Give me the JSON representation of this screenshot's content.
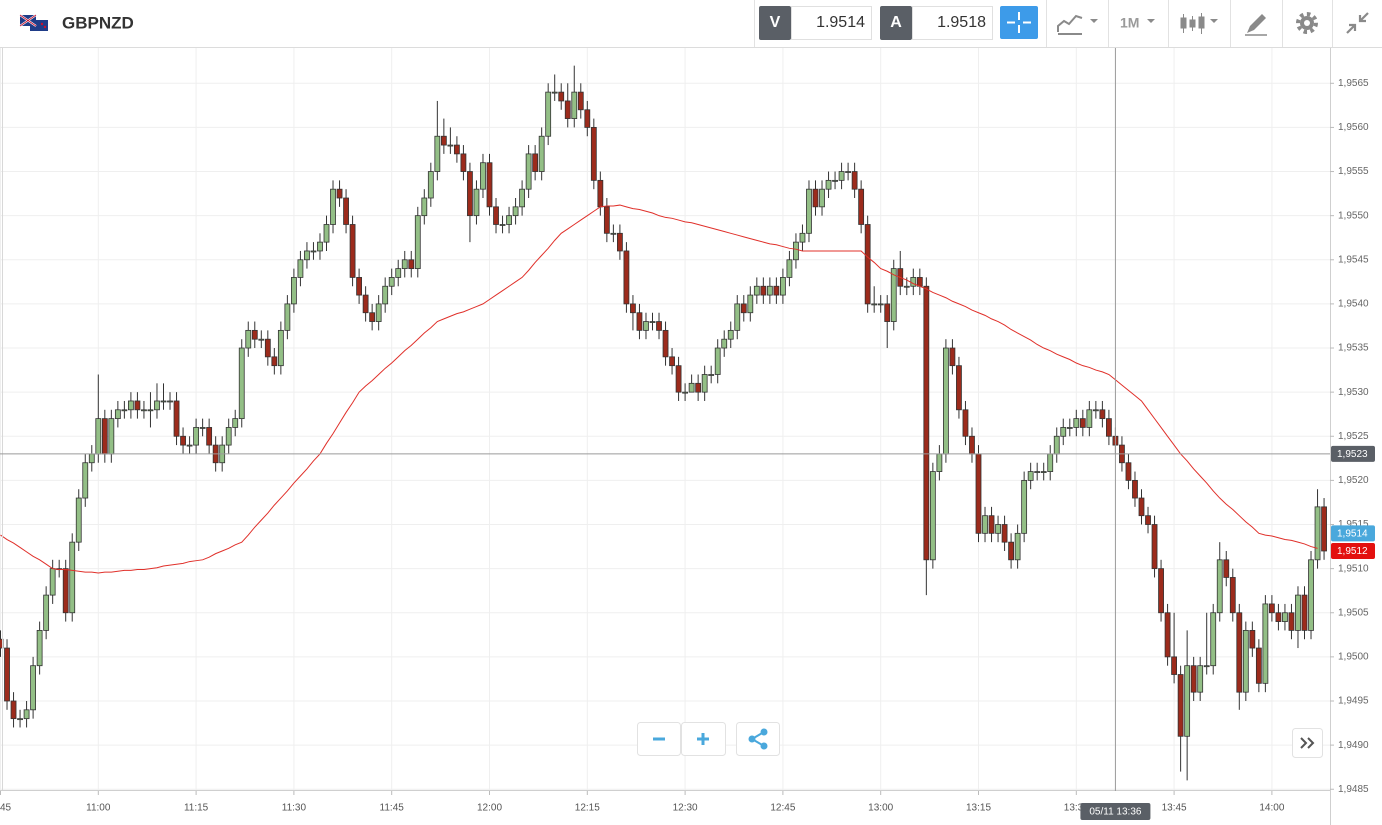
{
  "toolbar": {
    "symbol": "GBPNZD",
    "bid_label": "V",
    "bid": 1.9514,
    "ask_label": "A",
    "ask": 1.9518,
    "timeframe": "1M"
  },
  "chart_data": {
    "type": "candlestick",
    "categories": [
      "45",
      null,
      null,
      null,
      null,
      null,
      null,
      null,
      null,
      null,
      null,
      null,
      null,
      null,
      null,
      "11:00",
      null,
      null,
      null,
      null,
      null,
      null,
      null,
      null,
      null,
      null,
      null,
      null,
      null,
      null,
      "11:15",
      null,
      null,
      null,
      null,
      null,
      null,
      null,
      null,
      null,
      null,
      null,
      null,
      null,
      null,
      "11:30",
      null,
      null,
      null,
      null,
      null,
      null,
      null,
      null,
      null,
      null,
      null,
      null,
      null,
      null,
      "11:45",
      null,
      null,
      null,
      null,
      null,
      null,
      null,
      null,
      null,
      null,
      null,
      null,
      null,
      null,
      "12:00",
      null,
      null,
      null,
      null,
      null,
      null,
      null,
      null,
      null,
      null,
      null,
      null,
      null,
      null,
      "12:15",
      null,
      null,
      null,
      null,
      null,
      null,
      null,
      null,
      null,
      null,
      null,
      null,
      null,
      null,
      "12:30",
      null,
      null,
      null,
      null,
      null,
      null,
      null,
      null,
      null,
      null,
      null,
      null,
      null,
      null,
      "12:45",
      null,
      null,
      null,
      null,
      null,
      null,
      null,
      null,
      null,
      null,
      null,
      null,
      null,
      null,
      "13:00",
      null,
      null,
      null,
      null,
      null,
      null,
      null,
      null,
      null,
      null,
      null,
      null,
      null,
      null,
      "13:15",
      null,
      null,
      null,
      null,
      null,
      null,
      null,
      null,
      null,
      null,
      null,
      null,
      null,
      null,
      "13:30",
      null,
      null,
      null,
      null,
      null,
      null,
      null,
      null,
      null,
      null,
      null,
      null,
      null,
      null,
      "13:45",
      null,
      null,
      null,
      null,
      null,
      null,
      null,
      null,
      null,
      null,
      null,
      null,
      null,
      null,
      "14:00",
      null,
      null,
      null,
      null,
      null,
      null,
      null,
      null
    ],
    "open": [
      1.9502,
      1.9501,
      1.9495,
      1.9493,
      1.9493,
      1.9494,
      1.9499,
      1.9503,
      1.9507,
      1.951,
      1.951,
      1.9505,
      1.9513,
      1.9518,
      1.9522,
      1.9523,
      1.9527,
      1.9523,
      1.9527,
      1.9528,
      1.9528,
      1.9529,
      1.9528,
      1.9528,
      1.9528,
      1.9529,
      1.9529,
      1.9529,
      1.9525,
      1.9524,
      1.9524,
      1.9526,
      1.9526,
      1.9524,
      1.9522,
      1.9524,
      1.9526,
      1.9527,
      1.9535,
      1.9537,
      1.9536,
      1.9536,
      1.9534,
      1.9533,
      1.9537,
      1.954,
      1.9543,
      1.9545,
      1.9546,
      1.9546,
      1.9547,
      1.9549,
      1.9553,
      1.9552,
      1.9549,
      1.9543,
      1.9541,
      1.9539,
      1.9538,
      1.954,
      1.9542,
      1.9543,
      1.9544,
      1.9545,
      1.9544,
      1.955,
      1.9552,
      1.9555,
      1.9559,
      1.9558,
      1.9558,
      1.9557,
      1.9555,
      1.955,
      1.9553,
      1.9556,
      1.9551,
      1.9549,
      1.9549,
      1.955,
      1.9551,
      1.9553,
      1.9557,
      1.9555,
      1.9559,
      1.9564,
      1.9564,
      1.9563,
      1.9561,
      1.9564,
      1.9562,
      1.956,
      1.9554,
      1.9551,
      1.9548,
      1.9548,
      1.9546,
      1.954,
      1.9539,
      1.9537,
      1.9538,
      1.9538,
      1.9537,
      1.9534,
      1.9533,
      1.953,
      1.953,
      1.9531,
      1.953,
      1.9532,
      1.9532,
      1.9535,
      1.9536,
      1.9537,
      1.954,
      1.9539,
      1.9541,
      1.9542,
      1.9541,
      1.9542,
      1.9541,
      1.9543,
      1.9545,
      1.9547,
      1.9548,
      1.9553,
      1.9551,
      1.9553,
      1.9554,
      1.9554,
      1.9555,
      1.9555,
      1.9553,
      1.9549,
      1.954,
      1.954,
      1.954,
      1.9538,
      1.9544,
      1.9542,
      1.9542,
      1.9543,
      1.9542,
      1.9511,
      1.9521,
      1.9523,
      1.9535,
      1.9533,
      1.9528,
      1.9525,
      1.9523,
      1.9514,
      1.9516,
      1.9514,
      1.9515,
      1.9513,
      1.9511,
      1.9514,
      1.952,
      1.9521,
      1.9521,
      1.9521,
      1.9523,
      1.9525,
      1.9526,
      1.9526,
      1.9527,
      1.9526,
      1.9528,
      1.9528,
      1.9527,
      1.9525,
      1.9524,
      1.9522,
      1.952,
      1.9518,
      1.9516,
      1.9515,
      1.951,
      1.9505,
      1.95,
      1.9498,
      1.9491,
      1.9499,
      1.9496,
      1.9499,
      1.9499,
      1.9505,
      1.9511,
      1.9509,
      1.9505,
      1.9496,
      1.9503,
      1.9501,
      1.9497,
      1.9506,
      1.9505,
      1.9504,
      1.9505,
      1.9503,
      1.9507,
      1.9503,
      1.9511,
      1.9517
    ],
    "high": [
      1.9503,
      1.9502,
      1.9496,
      1.9494,
      1.9495,
      1.95,
      1.9504,
      1.9508,
      1.9511,
      1.9511,
      1.9511,
      1.9514,
      1.9519,
      1.9523,
      1.9524,
      1.9532,
      1.9528,
      1.9528,
      1.9529,
      1.9529,
      1.953,
      1.953,
      1.9529,
      1.953,
      1.9531,
      1.9531,
      1.953,
      1.953,
      1.9526,
      1.9525,
      1.9527,
      1.9527,
      1.9527,
      1.9525,
      1.9525,
      1.9527,
      1.9528,
      1.9536,
      1.9538,
      1.9538,
      1.9537,
      1.9537,
      1.9535,
      1.9538,
      1.9541,
      1.9544,
      1.9546,
      1.9547,
      1.9547,
      1.9548,
      1.955,
      1.9554,
      1.9554,
      1.9553,
      1.955,
      1.9544,
      1.9542,
      1.954,
      1.9541,
      1.9543,
      1.9544,
      1.9545,
      1.9546,
      1.9546,
      1.9551,
      1.9553,
      1.9556,
      1.9563,
      1.9561,
      1.956,
      1.9559,
      1.9558,
      1.9556,
      1.9554,
      1.9557,
      1.9557,
      1.9552,
      1.955,
      1.9551,
      1.9552,
      1.9554,
      1.9558,
      1.9558,
      1.956,
      1.9565,
      1.9566,
      1.9565,
      1.9565,
      1.9567,
      1.9565,
      1.9563,
      1.9561,
      1.9555,
      1.9552,
      1.9549,
      1.9549,
      1.9547,
      1.9541,
      1.954,
      1.9539,
      1.9539,
      1.9539,
      1.9538,
      1.9535,
      1.9534,
      1.9531,
      1.9532,
      1.9532,
      1.9533,
      1.9533,
      1.9536,
      1.9537,
      1.9538,
      1.9541,
      1.9541,
      1.9542,
      1.9543,
      1.9543,
      1.9543,
      1.9543,
      1.9544,
      1.9546,
      1.9548,
      1.9549,
      1.9554,
      1.9554,
      1.9554,
      1.9555,
      1.9555,
      1.9556,
      1.9556,
      1.9556,
      1.9554,
      1.955,
      1.9542,
      1.9541,
      1.9541,
      1.9545,
      1.9546,
      1.9543,
      1.9544,
      1.9544,
      1.9543,
      1.9522,
      1.9524,
      1.9536,
      1.9536,
      1.9534,
      1.9529,
      1.9526,
      1.9524,
      1.9517,
      1.9517,
      1.9516,
      1.9516,
      1.9514,
      1.9515,
      1.9521,
      1.9522,
      1.9522,
      1.9522,
      1.9524,
      1.9526,
      1.9527,
      1.9527,
      1.9528,
      1.9528,
      1.9529,
      1.9529,
      1.9529,
      1.9528,
      1.9526,
      1.9525,
      1.9523,
      1.9521,
      1.9519,
      1.9517,
      1.9516,
      1.9511,
      1.9506,
      1.9505,
      1.9499,
      1.9503,
      1.95,
      1.95,
      1.9505,
      1.9506,
      1.9513,
      1.9512,
      1.951,
      1.9506,
      1.9504,
      1.9504,
      1.9502,
      1.9507,
      1.9507,
      1.9506,
      1.9506,
      1.9506,
      1.9508,
      1.9508,
      1.9512,
      1.9519,
      1.9518
    ],
    "low": [
      1.95,
      1.9494,
      1.9492,
      1.9492,
      1.9492,
      1.9493,
      1.9498,
      1.9502,
      1.9506,
      1.9509,
      1.9504,
      1.9504,
      1.9512,
      1.9517,
      1.9521,
      1.9522,
      1.9522,
      1.9522,
      1.9526,
      1.9527,
      1.9527,
      1.9527,
      1.9527,
      1.9526,
      1.9527,
      1.9528,
      1.9528,
      1.9524,
      1.9523,
      1.9523,
      1.9523,
      1.9525,
      1.9523,
      1.9521,
      1.9521,
      1.9523,
      1.9525,
      1.9526,
      1.9534,
      1.9535,
      1.9535,
      1.9533,
      1.9532,
      1.9532,
      1.9536,
      1.9539,
      1.9542,
      1.9544,
      1.9545,
      1.9545,
      1.9546,
      1.9548,
      1.9551,
      1.9548,
      1.9542,
      1.954,
      1.9538,
      1.9537,
      1.9537,
      1.9539,
      1.9541,
      1.9542,
      1.9543,
      1.9543,
      1.9543,
      1.9549,
      1.9551,
      1.9554,
      1.9557,
      1.9557,
      1.9556,
      1.9554,
      1.9547,
      1.9549,
      1.9552,
      1.955,
      1.9548,
      1.9548,
      1.9548,
      1.9549,
      1.955,
      1.9552,
      1.9554,
      1.9554,
      1.9558,
      1.9563,
      1.9562,
      1.956,
      1.956,
      1.9561,
      1.9559,
      1.9553,
      1.955,
      1.9547,
      1.9547,
      1.9545,
      1.9539,
      1.9537,
      1.9536,
      1.9536,
      1.9537,
      1.9536,
      1.9533,
      1.9532,
      1.9529,
      1.9529,
      1.953,
      1.9529,
      1.9529,
      1.9531,
      1.9531,
      1.9534,
      1.9535,
      1.9536,
      1.9538,
      1.9538,
      1.954,
      1.954,
      1.954,
      1.954,
      1.954,
      1.9542,
      1.9544,
      1.9546,
      1.9547,
      1.955,
      1.955,
      1.9552,
      1.9553,
      1.9553,
      1.9554,
      1.9552,
      1.9548,
      1.9539,
      1.9539,
      1.9539,
      1.9535,
      1.9537,
      1.9541,
      1.9541,
      1.9541,
      1.9541,
      1.9507,
      1.951,
      1.952,
      1.9522,
      1.9532,
      1.9527,
      1.9524,
      1.9522,
      1.9513,
      1.9513,
      1.9513,
      1.9513,
      1.9512,
      1.951,
      1.951,
      1.9513,
      1.9519,
      1.952,
      1.952,
      1.952,
      1.9522,
      1.9524,
      1.9525,
      1.9525,
      1.9525,
      1.9525,
      1.9527,
      1.9526,
      1.9524,
      1.9523,
      1.9521,
      1.9519,
      1.9517,
      1.9515,
      1.9514,
      1.9509,
      1.9504,
      1.9499,
      1.9497,
      1.9487,
      1.9486,
      1.9495,
      1.9495,
      1.9498,
      1.9498,
      1.9504,
      1.9508,
      1.9504,
      1.9494,
      1.9495,
      1.95,
      1.9496,
      1.9496,
      1.9504,
      1.9503,
      1.9503,
      1.9502,
      1.9501,
      1.9502,
      1.9502,
      1.951,
      1.9511
    ],
    "close": [
      1.9501,
      1.9495,
      1.9493,
      1.9493,
      1.9494,
      1.9499,
      1.9503,
      1.9507,
      1.951,
      1.951,
      1.9505,
      1.9513,
      1.9518,
      1.9522,
      1.9523,
      1.9527,
      1.9523,
      1.9527,
      1.9528,
      1.9528,
      1.9529,
      1.9528,
      1.9528,
      1.9528,
      1.9529,
      1.9529,
      1.9529,
      1.9525,
      1.9524,
      1.9524,
      1.9526,
      1.9526,
      1.9524,
      1.9522,
      1.9524,
      1.9526,
      1.9527,
      1.9535,
      1.9537,
      1.9536,
      1.9536,
      1.9534,
      1.9533,
      1.9537,
      1.954,
      1.9543,
      1.9545,
      1.9546,
      1.9546,
      1.9547,
      1.9549,
      1.9553,
      1.9552,
      1.9549,
      1.9543,
      1.9541,
      1.9539,
      1.9538,
      1.954,
      1.9542,
      1.9543,
      1.9544,
      1.9545,
      1.9544,
      1.955,
      1.9552,
      1.9555,
      1.9559,
      1.9558,
      1.9558,
      1.9557,
      1.9555,
      1.955,
      1.9553,
      1.9556,
      1.9551,
      1.9549,
      1.9549,
      1.955,
      1.9551,
      1.9553,
      1.9557,
      1.9555,
      1.9559,
      1.9564,
      1.9564,
      1.9563,
      1.9561,
      1.9564,
      1.9562,
      1.956,
      1.9554,
      1.9551,
      1.9548,
      1.9548,
      1.9546,
      1.954,
      1.9539,
      1.9537,
      1.9538,
      1.9538,
      1.9537,
      1.9534,
      1.9533,
      1.953,
      1.953,
      1.9531,
      1.953,
      1.9532,
      1.9532,
      1.9535,
      1.9536,
      1.9537,
      1.954,
      1.9539,
      1.9541,
      1.9542,
      1.9541,
      1.9542,
      1.9541,
      1.9543,
      1.9545,
      1.9547,
      1.9548,
      1.9553,
      1.9551,
      1.9553,
      1.9554,
      1.9554,
      1.9555,
      1.9555,
      1.9553,
      1.9549,
      1.954,
      1.954,
      1.954,
      1.9538,
      1.9544,
      1.9542,
      1.9542,
      1.9543,
      1.9542,
      1.9511,
      1.9521,
      1.9523,
      1.9535,
      1.9533,
      1.9528,
      1.9525,
      1.9523,
      1.9514,
      1.9516,
      1.9514,
      1.9515,
      1.9513,
      1.9511,
      1.9514,
      1.952,
      1.9521,
      1.9521,
      1.9521,
      1.9523,
      1.9525,
      1.9526,
      1.9526,
      1.9527,
      1.9526,
      1.9528,
      1.9528,
      1.9527,
      1.9525,
      1.9524,
      1.9522,
      1.952,
      1.9518,
      1.9516,
      1.9515,
      1.951,
      1.9505,
      1.95,
      1.9498,
      1.9491,
      1.9499,
      1.9496,
      1.9499,
      1.9499,
      1.9505,
      1.9511,
      1.9509,
      1.9505,
      1.9496,
      1.9503,
      1.9501,
      1.9497,
      1.9506,
      1.9505,
      1.9504,
      1.9505,
      1.9503,
      1.9507,
      1.9503,
      1.9511,
      1.9517,
      1.9512
    ],
    "up_color": "#93bf86",
    "down_color": "#9c2b1c",
    "ma": {
      "color": "#e0302a",
      "values": [
        1.95138,
        1.95133,
        1.95129,
        1.95124,
        1.95119,
        1.95114,
        1.9511,
        1.95105,
        1.951,
        1.95099,
        1.95099,
        1.95098,
        1.95097,
        1.95096,
        1.95096,
        1.95095,
        1.95096,
        1.95096,
        1.95097,
        1.95098,
        1.95098,
        1.95099,
        1.95099,
        1.951,
        1.95101,
        1.95103,
        1.95104,
        1.95105,
        1.95106,
        1.95108,
        1.95109,
        1.9511,
        1.95113,
        1.95117,
        1.9512,
        1.95123,
        1.95127,
        1.9513,
        1.95138,
        1.95147,
        1.95155,
        1.95163,
        1.95172,
        1.9518,
        1.95188,
        1.95197,
        1.95205,
        1.95213,
        1.95222,
        1.9523,
        1.95242,
        1.95253,
        1.95265,
        1.95277,
        1.95288,
        1.953,
        1.95307,
        1.95313,
        1.9532,
        1.95327,
        1.95333,
        1.9534,
        1.95347,
        1.95353,
        1.9536,
        1.95367,
        1.95373,
        1.9538,
        1.95383,
        1.95386,
        1.95389,
        1.95391,
        1.95394,
        1.95397,
        1.954,
        1.95405,
        1.9541,
        1.95415,
        1.9542,
        1.95425,
        1.9543,
        1.95438,
        1.95447,
        1.95455,
        1.95463,
        1.95472,
        1.9548,
        1.95485,
        1.9549,
        1.95495,
        1.955,
        1.95505,
        1.9551,
        1.95511,
        1.95511,
        1.95512,
        1.9551,
        1.95508,
        1.95507,
        1.95505,
        1.95503,
        1.955,
        1.95498,
        1.95497,
        1.95495,
        1.95493,
        1.95492,
        1.9549,
        1.95488,
        1.95486,
        1.95484,
        1.95482,
        1.9548,
        1.95478,
        1.95476,
        1.95474,
        1.95472,
        1.9547,
        1.95468,
        1.95467,
        1.95465,
        1.95463,
        1.95462,
        1.9546,
        1.9546,
        1.9546,
        1.9546,
        1.9546,
        1.9546,
        1.9546,
        1.9546,
        1.9546,
        1.9546,
        1.95453,
        1.95447,
        1.9544,
        1.95437,
        1.95433,
        1.9543,
        1.95427,
        1.95423,
        1.9542,
        1.95417,
        1.95413,
        1.9541,
        1.95407,
        1.95403,
        1.954,
        1.95397,
        1.95393,
        1.9539,
        1.95387,
        1.95383,
        1.9538,
        1.95376,
        1.95371,
        1.95367,
        1.95363,
        1.95359,
        1.95354,
        1.9535,
        1.95347,
        1.95343,
        1.9534,
        1.95337,
        1.95333,
        1.9533,
        1.95328,
        1.95325,
        1.95323,
        1.9532,
        1.95314,
        1.95308,
        1.95302,
        1.95296,
        1.9529,
        1.9528,
        1.9527,
        1.9526,
        1.9525,
        1.9524,
        1.9523,
        1.95222,
        1.95213,
        1.95205,
        1.95197,
        1.95188,
        1.9518,
        1.95173,
        1.95167,
        1.9516,
        1.95153,
        1.95147,
        1.9514,
        1.95138,
        1.95137,
        1.95135,
        1.95133,
        1.95132,
        1.9513,
        1.95128,
        1.95125,
        1.95123
      ]
    },
    "ylim": [
      1.94848,
      1.9569
    ],
    "yticks": [
      {
        "value": 1.9485,
        "label": "1,9485"
      },
      {
        "value": 1.949,
        "label": "1,9490"
      },
      {
        "value": 1.9495,
        "label": "1,9495"
      },
      {
        "value": 1.95,
        "label": "1,9500"
      },
      {
        "value": 1.9505,
        "label": "1,9505"
      },
      {
        "value": 1.951,
        "label": "1,9510"
      },
      {
        "value": 1.9515,
        "label": "1,9515"
      },
      {
        "value": 1.952,
        "label": "1,9520"
      },
      {
        "value": 1.9525,
        "label": "1,9525"
      },
      {
        "value": 1.953,
        "label": "1,9530"
      },
      {
        "value": 1.9535,
        "label": "1,9535"
      },
      {
        "value": 1.954,
        "label": "1,9540"
      },
      {
        "value": 1.9545,
        "label": "1,9545"
      },
      {
        "value": 1.955,
        "label": "1,9550"
      },
      {
        "value": 1.9555,
        "label": "1,9555"
      },
      {
        "value": 1.956,
        "label": "1,9560"
      },
      {
        "value": 1.9565,
        "label": "1,9565"
      }
    ],
    "grid": true,
    "price_tags": [
      {
        "value": 1.9514,
        "label": "1,9514",
        "color": "#4aa8dc"
      },
      {
        "value": 1.9512,
        "label": "1,9512",
        "color": "#e3110f"
      },
      {
        "value": 1.9523,
        "label": "1,9523",
        "color": "#5a5f66"
      }
    ],
    "crosshair": {
      "index": 171,
      "value": 1.9523,
      "label": "05/11 13:36"
    }
  }
}
